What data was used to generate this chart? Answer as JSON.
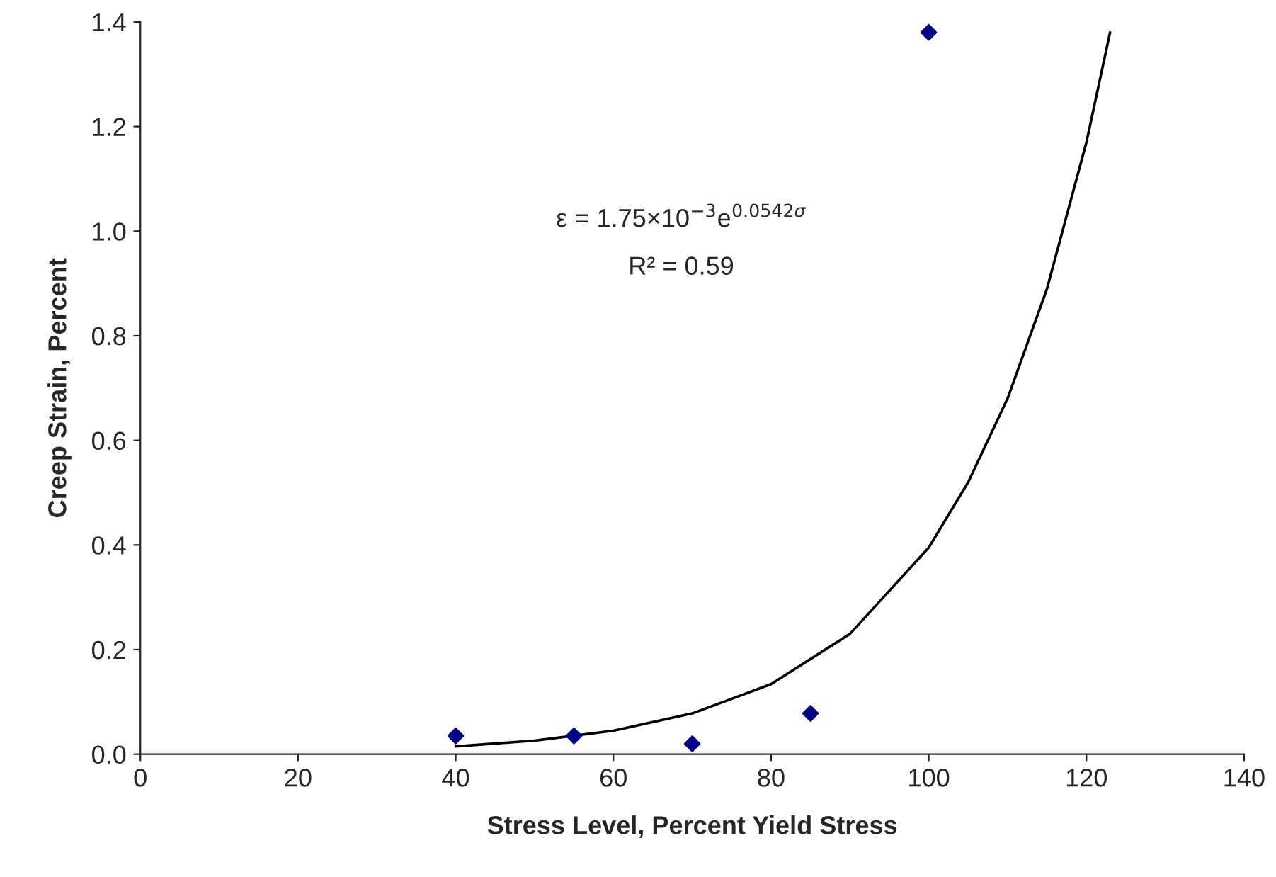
{
  "chart_data": {
    "type": "scatter",
    "xlabel": "Stress Level, Percent Yield Stress",
    "ylabel": "Creep Strain, Percent",
    "series": [
      {
        "color": "#000080",
        "marker": "diamond",
        "x": [
          40,
          55,
          70,
          85,
          100
        ],
        "values": [
          0.035,
          0.035,
          0.02,
          0.078,
          1.38
        ]
      },
      {
        "type": "line",
        "color": "#000000",
        "marker": "none",
        "line_style": "solid",
        "x": [
          40,
          50,
          60,
          70,
          80,
          90,
          100,
          105,
          110,
          115,
          120,
          123
        ],
        "values": [
          0.015,
          0.026,
          0.045,
          0.078,
          0.134,
          0.23,
          0.395,
          0.52,
          0.68,
          0.89,
          1.17,
          1.38
        ]
      }
    ],
    "xlim": [
      0,
      140
    ],
    "xticks": [
      0,
      20,
      40,
      60,
      80,
      100,
      120,
      140
    ],
    "ylim": [
      0,
      1.4
    ],
    "yticks": [
      {
        "value": 0,
        "label": "0.0"
      },
      {
        "value": 0.2,
        "label": "0.2"
      },
      {
        "value": 0.4,
        "label": "0.4"
      },
      {
        "value": 0.6,
        "label": "0.6"
      },
      {
        "value": 0.8,
        "label": "0.8"
      },
      {
        "value": 1.0,
        "label": "1.0"
      },
      {
        "value": 1.2,
        "label": "1.2"
      },
      {
        "value": 1.4,
        "label": "1.4"
      }
    ],
    "annotations": [
      "ε = 1.75×10$^{−3}$e$^{0.0542σ}$",
      "R² = 0.59"
    ],
    "grid": false,
    "legend": false
  }
}
